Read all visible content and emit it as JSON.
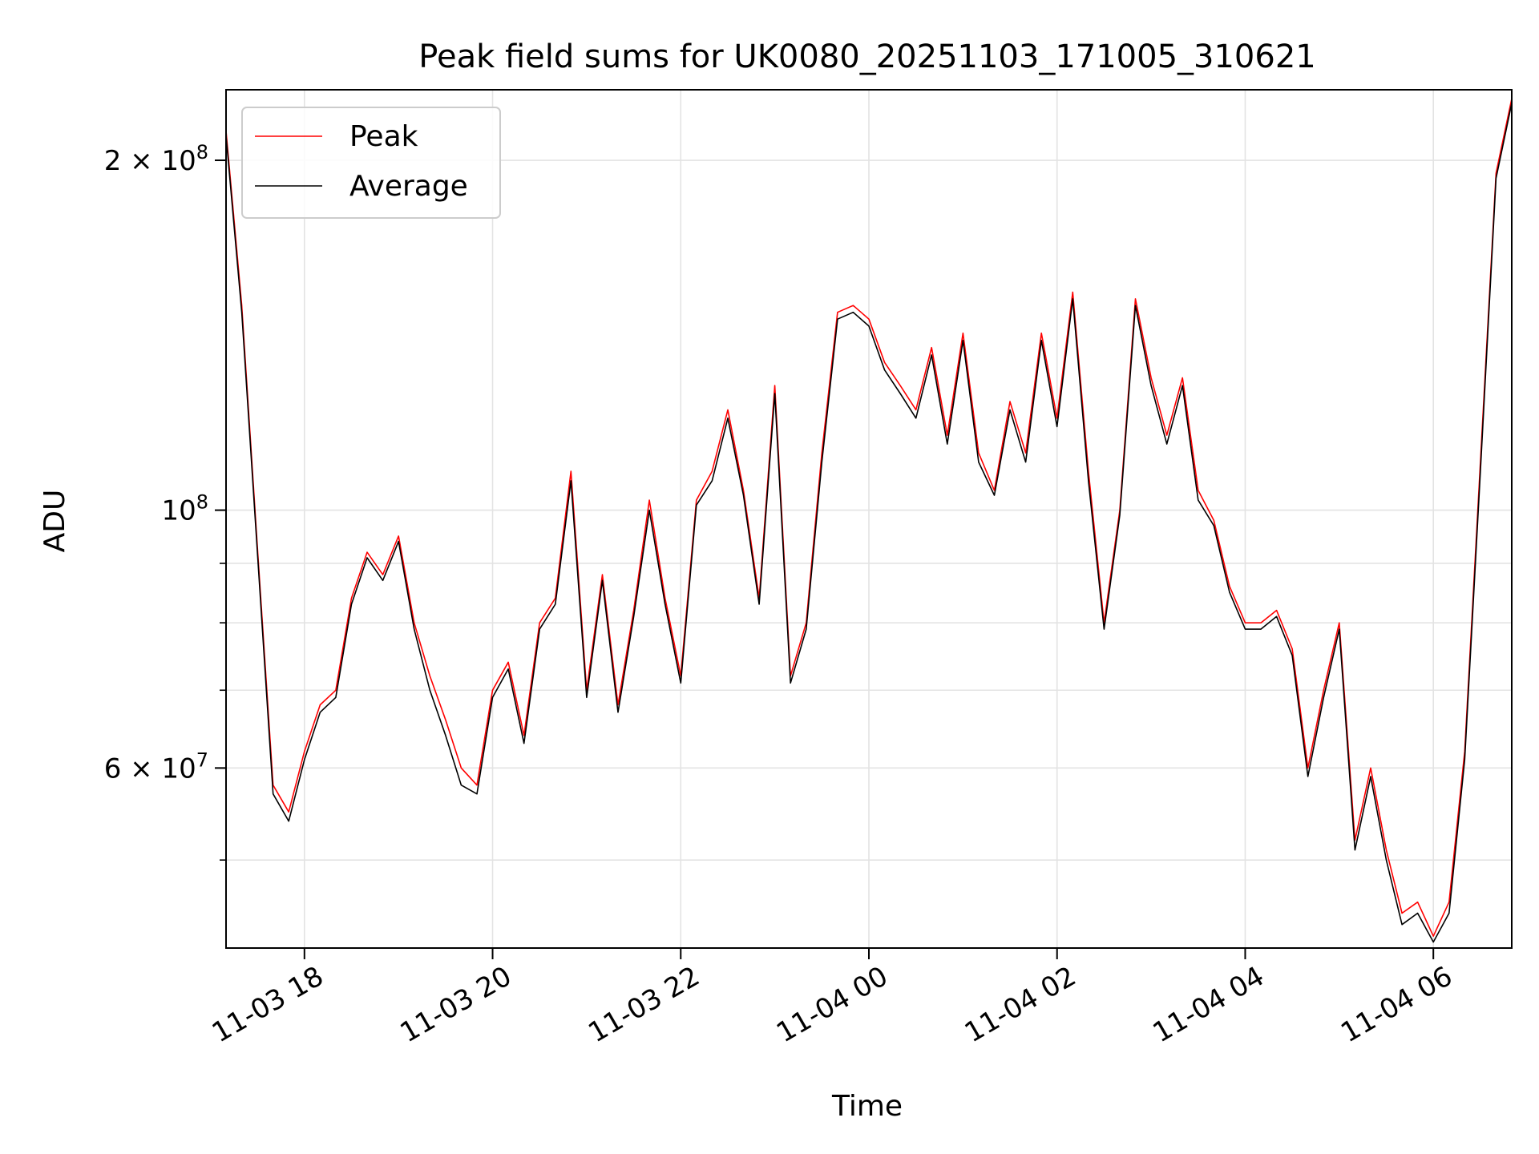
{
  "chart_data": {
    "type": "line",
    "title": "Peak field sums for UK0080_20251103_171005_310621",
    "xlabel": "Time",
    "ylabel": "ADU",
    "yscale": "log",
    "ylim": [
      42000000,
      230000000
    ],
    "xlim": [
      "2025-11-03 17:10",
      "2025-11-04 06:50"
    ],
    "x_ticks": [
      {
        "t": "2025-11-03 18:00",
        "label": "11-03 18"
      },
      {
        "t": "2025-11-03 20:00",
        "label": "11-03 20"
      },
      {
        "t": "2025-11-03 22:00",
        "label": "11-03 22"
      },
      {
        "t": "2025-11-04 00:00",
        "label": "11-04 00"
      },
      {
        "t": "2025-11-04 02:00",
        "label": "11-04 02"
      },
      {
        "t": "2025-11-04 04:00",
        "label": "11-04 04"
      },
      {
        "t": "2025-11-04 06:00",
        "label": "11-04 06"
      }
    ],
    "y_ticks": [
      {
        "v": 60000000,
        "base": "6",
        "exp": "7"
      },
      {
        "v": 100000000,
        "base": "",
        "exp": "8"
      },
      {
        "v": 200000000,
        "base": "2",
        "exp": "8"
      }
    ],
    "grid": true,
    "legend_position": "top-left",
    "x": [
      "2025-11-03 17:10",
      "2025-11-03 17:20",
      "2025-11-03 17:30",
      "2025-11-03 17:40",
      "2025-11-03 17:50",
      "2025-11-03 18:00",
      "2025-11-03 18:10",
      "2025-11-03 18:20",
      "2025-11-03 18:30",
      "2025-11-03 18:40",
      "2025-11-03 18:50",
      "2025-11-03 19:00",
      "2025-11-03 19:10",
      "2025-11-03 19:20",
      "2025-11-03 19:30",
      "2025-11-03 19:40",
      "2025-11-03 19:50",
      "2025-11-03 20:00",
      "2025-11-03 20:10",
      "2025-11-03 20:20",
      "2025-11-03 20:30",
      "2025-11-03 20:40",
      "2025-11-03 20:50",
      "2025-11-03 21:00",
      "2025-11-03 21:10",
      "2025-11-03 21:20",
      "2025-11-03 21:30",
      "2025-11-03 21:40",
      "2025-11-03 21:50",
      "2025-11-03 22:00",
      "2025-11-03 22:10",
      "2025-11-03 22:20",
      "2025-11-03 22:30",
      "2025-11-03 22:40",
      "2025-11-03 22:50",
      "2025-11-03 23:00",
      "2025-11-03 23:10",
      "2025-11-03 23:20",
      "2025-11-03 23:30",
      "2025-11-03 23:40",
      "2025-11-03 23:50",
      "2025-11-04 00:00",
      "2025-11-04 00:10",
      "2025-11-04 00:20",
      "2025-11-04 00:30",
      "2025-11-04 00:40",
      "2025-11-04 00:50",
      "2025-11-04 01:00",
      "2025-11-04 01:10",
      "2025-11-04 01:20",
      "2025-11-04 01:30",
      "2025-11-04 01:40",
      "2025-11-04 01:50",
      "2025-11-04 02:00",
      "2025-11-04 02:10",
      "2025-11-04 02:20",
      "2025-11-04 02:30",
      "2025-11-04 02:40",
      "2025-11-04 02:50",
      "2025-11-04 03:00",
      "2025-11-04 03:10",
      "2025-11-04 03:20",
      "2025-11-04 03:30",
      "2025-11-04 03:40",
      "2025-11-04 03:50",
      "2025-11-04 04:00",
      "2025-11-04 04:10",
      "2025-11-04 04:20",
      "2025-11-04 04:30",
      "2025-11-04 04:40",
      "2025-11-04 04:50",
      "2025-11-04 05:00",
      "2025-11-04 05:10",
      "2025-11-04 05:20",
      "2025-11-04 05:30",
      "2025-11-04 05:40",
      "2025-11-04 05:50",
      "2025-11-04 06:00",
      "2025-11-04 06:10",
      "2025-11-04 06:20",
      "2025-11-04 06:30",
      "2025-11-04 06:40",
      "2025-11-04 06:50"
    ],
    "series": [
      {
        "name": "Peak",
        "color": "#ff0000",
        "values": [
          212000000,
          150000000,
          93000000,
          58000000,
          55000000,
          62000000,
          68000000,
          70000000,
          84000000,
          92000000,
          88000000,
          95000000,
          80000000,
          72000000,
          66000000,
          60000000,
          58000000,
          70000000,
          74000000,
          64000000,
          80000000,
          84000000,
          108000000,
          70000000,
          88000000,
          68000000,
          82000000,
          102000000,
          84000000,
          72000000,
          102000000,
          108000000,
          122000000,
          104000000,
          84000000,
          128000000,
          72000000,
          80000000,
          112000000,
          148000000,
          150000000,
          146000000,
          134000000,
          128000000,
          122000000,
          138000000,
          116000000,
          142000000,
          112000000,
          104000000,
          124000000,
          112000000,
          142000000,
          120000000,
          154000000,
          108000000,
          80000000,
          100000000,
          152000000,
          130000000,
          116000000,
          130000000,
          104000000,
          98000000,
          86000000,
          80000000,
          80000000,
          82000000,
          76000000,
          60000000,
          70000000,
          80000000,
          52000000,
          60000000,
          51000000,
          45000000,
          46000000,
          43000000,
          46000000,
          62000000,
          110000000,
          195000000,
          226000000
        ]
      },
      {
        "name": "Average",
        "color": "#000000",
        "values": [
          210000000,
          148000000,
          92000000,
          57000000,
          54000000,
          61000000,
          67000000,
          69000000,
          83000000,
          91000000,
          87000000,
          94000000,
          79000000,
          70000000,
          64000000,
          58000000,
          57000000,
          69000000,
          73000000,
          63000000,
          79000000,
          83000000,
          106000000,
          69000000,
          87000000,
          67000000,
          81000000,
          100000000,
          83000000,
          71000000,
          101000000,
          106000000,
          120000000,
          103000000,
          83000000,
          126000000,
          71000000,
          79000000,
          110000000,
          146000000,
          148000000,
          144000000,
          132000000,
          126000000,
          120000000,
          136000000,
          114000000,
          140000000,
          110000000,
          103000000,
          122000000,
          110000000,
          140000000,
          118000000,
          152000000,
          106000000,
          79000000,
          99000000,
          150000000,
          128000000,
          114000000,
          128000000,
          102000000,
          97000000,
          85000000,
          79000000,
          79000000,
          81000000,
          75000000,
          59000000,
          69000000,
          79000000,
          51000000,
          59000000,
          50000000,
          44000000,
          45000000,
          42500000,
          45000000,
          61000000,
          108000000,
          193000000,
          224000000
        ]
      }
    ]
  }
}
